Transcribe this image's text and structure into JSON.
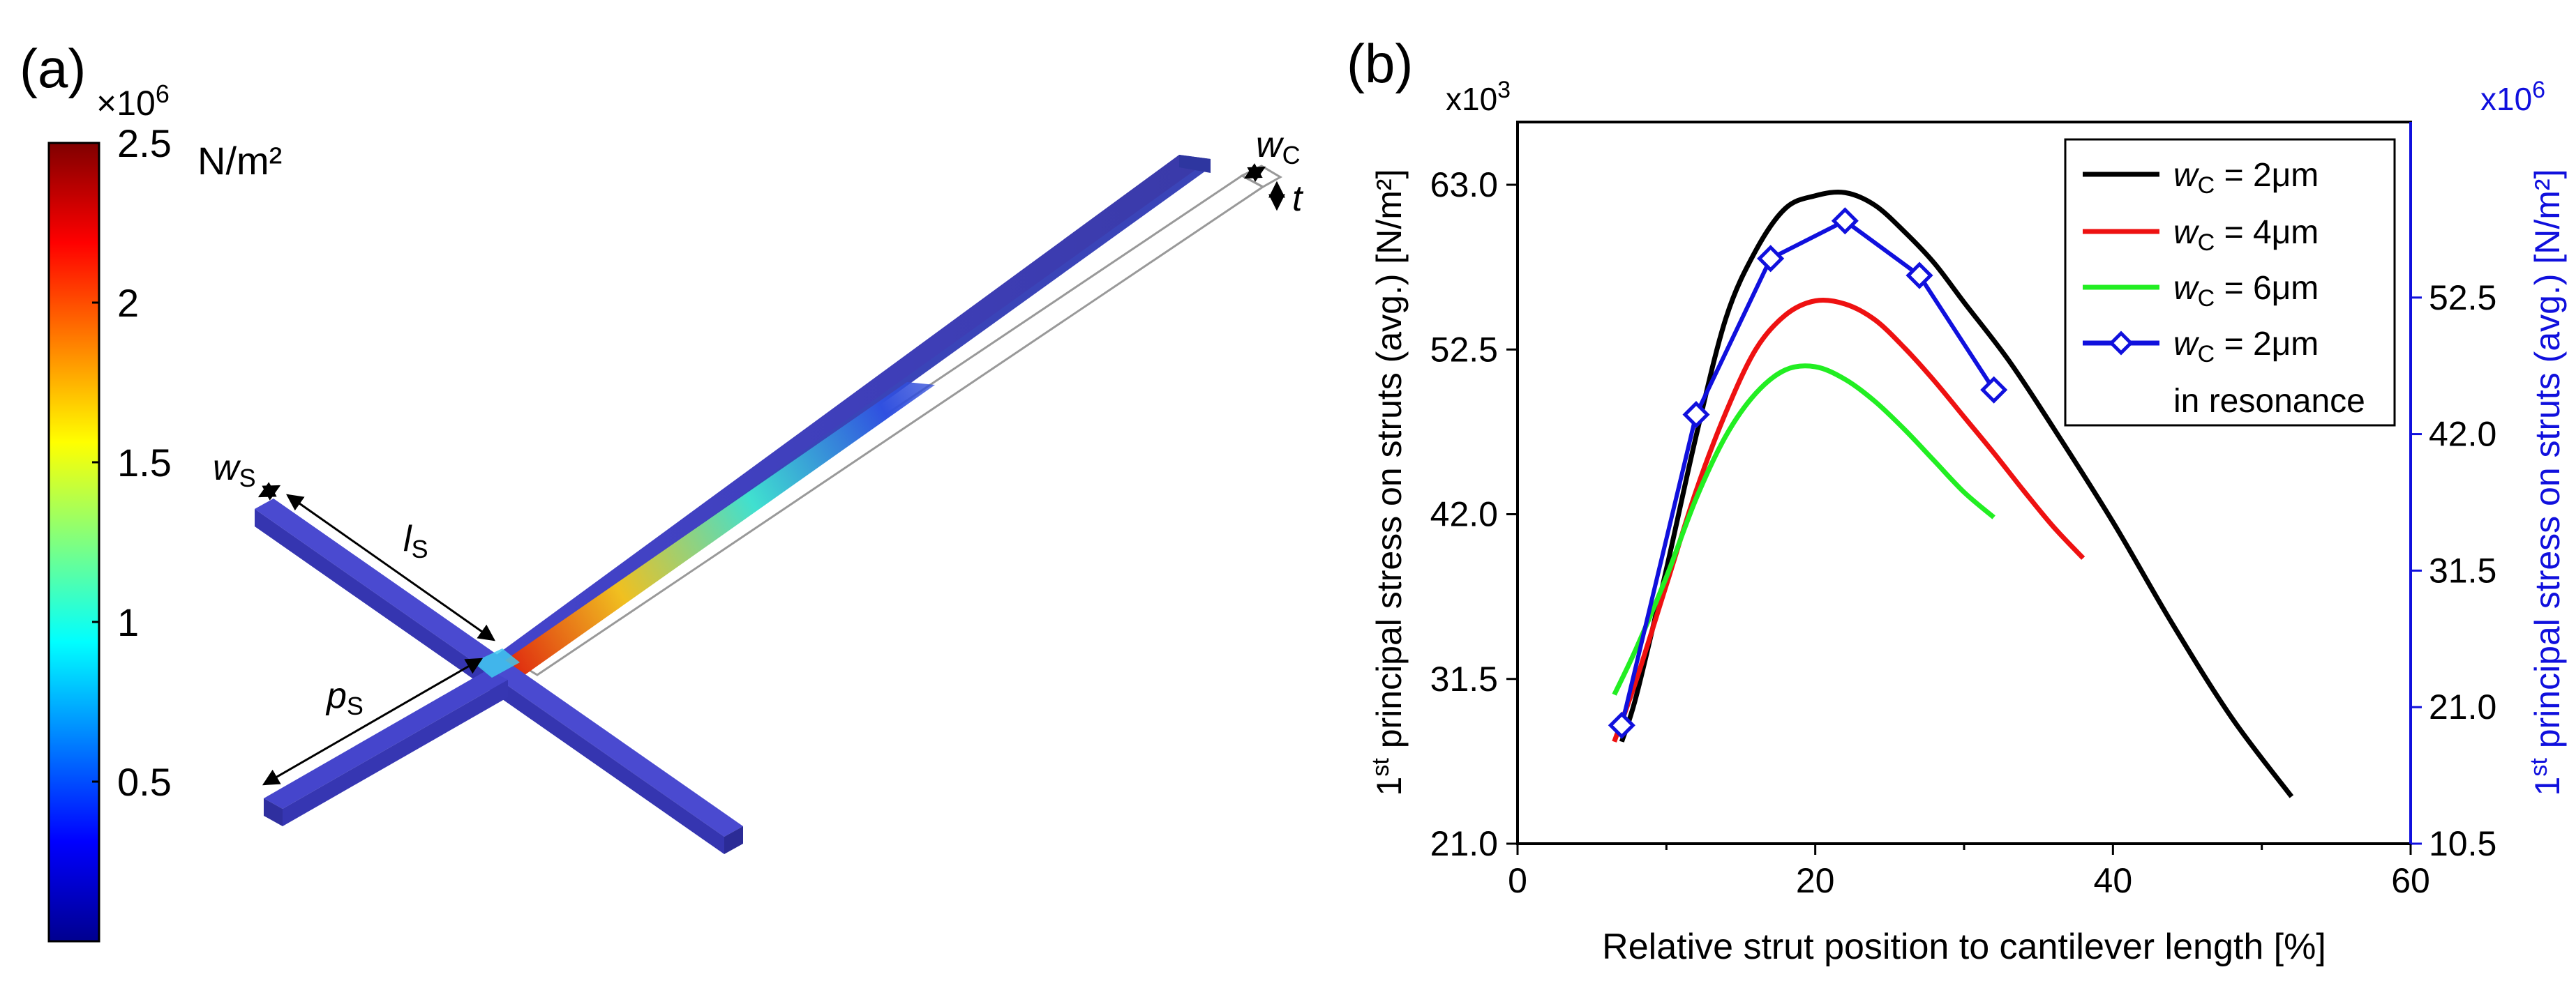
{
  "panel_a": {
    "label": "(a)",
    "colorbar": {
      "multiplier_base": "×10",
      "multiplier_exp": "6",
      "unit": "N/m²",
      "ticks": [
        {
          "label": "2.5",
          "value": 2.5
        },
        {
          "label": "2",
          "value": 2.0
        },
        {
          "label": "1.5",
          "value": 1.5
        },
        {
          "label": "1",
          "value": 1.0
        },
        {
          "label": "0.5",
          "value": 0.5
        }
      ],
      "range": [
        0,
        2.5
      ]
    },
    "annotations": {
      "wc": {
        "sym": "w",
        "sub": "C"
      },
      "t": {
        "sym": "t"
      },
      "ws": {
        "sym": "w",
        "sub": "S"
      },
      "ls": {
        "sym": "l",
        "sub": "S"
      },
      "ps": {
        "sym": "p",
        "sub": "S"
      }
    }
  },
  "panel_b": {
    "label": "(b)",
    "left_multiplier": {
      "base": "x10",
      "exp": "3"
    },
    "right_multiplier": {
      "base": "x10",
      "exp": "6"
    },
    "ylabel_left": {
      "prefix": "1",
      "sup": "st",
      "rest": " principal stress on struts (avg.) [N/m²]"
    },
    "ylabel_right": {
      "prefix": "1",
      "sup": "st",
      "rest": " principal stress on struts (avg.) [N/m²]"
    },
    "colors": {
      "left_axis": "#000000",
      "right_axis": "#1010dd"
    }
  },
  "chart_data": {
    "type": "line",
    "xlabel": "Relative strut position to cantilever length [%]",
    "xlim": [
      0,
      60
    ],
    "xticks": [
      "0",
      "20",
      "40",
      "60"
    ],
    "ylim_left": [
      21.0,
      67.0
    ],
    "yticks_left": [
      "21.0",
      "31.5",
      "42.0",
      "52.5",
      "63.0"
    ],
    "ylim_right": [
      10.5,
      66.0
    ],
    "yticks_right": [
      "10.5",
      "21.0",
      "31.5",
      "42.0",
      "52.5"
    ],
    "series": [
      {
        "name": "w_C = 2μm",
        "label_sym": "w",
        "label_sub": "C",
        "label_rest": " = 2μm",
        "color": "#000000",
        "axis": "left",
        "marker": "none",
        "x": [
          7,
          8,
          10,
          12,
          14,
          16,
          18,
          20,
          22,
          24,
          26,
          28,
          30,
          33,
          36,
          40,
          44,
          48,
          52
        ],
        "y": [
          27.5,
          30.5,
          38.5,
          47.0,
          54.5,
          58.8,
          61.5,
          62.3,
          62.5,
          61.7,
          60.0,
          58.0,
          55.5,
          51.8,
          47.5,
          41.5,
          35.0,
          29.0,
          24.0
        ]
      },
      {
        "name": "w_C = 4μm",
        "label_sym": "w",
        "label_sub": "C",
        "label_rest": " = 4μm",
        "color": "#ee1111",
        "axis": "left",
        "marker": "none",
        "x": [
          6.5,
          8,
          10,
          12,
          14,
          16,
          18,
          20,
          22,
          24,
          26,
          28,
          30,
          32,
          34,
          36,
          38
        ],
        "y": [
          27.5,
          31.5,
          37.5,
          43.5,
          48.5,
          52.5,
          54.7,
          55.6,
          55.4,
          54.4,
          52.6,
          50.5,
          48.2,
          45.9,
          43.5,
          41.2,
          39.2
        ]
      },
      {
        "name": "w_C = 6μm",
        "label_sym": "w",
        "label_sub": "C",
        "label_rest": " = 6μm",
        "color": "#22ee22",
        "axis": "left",
        "marker": "none",
        "x": [
          6.5,
          8,
          10,
          12,
          14,
          16,
          18,
          20,
          22,
          24,
          26,
          28,
          30,
          32
        ],
        "y": [
          30.5,
          33.5,
          38.0,
          43.0,
          47.0,
          49.7,
          51.2,
          51.4,
          50.6,
          49.2,
          47.4,
          45.4,
          43.4,
          41.8
        ]
      },
      {
        "name": "w_C = 2μm in resonance",
        "label_sym": "w",
        "label_sub": "C",
        "label_rest": " = 2μm",
        "label_line2": "in resonance",
        "color": "#1010dd",
        "axis": "right",
        "marker": "diamond",
        "x": [
          7,
          12,
          17,
          22,
          27,
          32
        ],
        "y": [
          19.6,
          43.5,
          55.5,
          58.4,
          54.2,
          45.4
        ]
      }
    ]
  }
}
